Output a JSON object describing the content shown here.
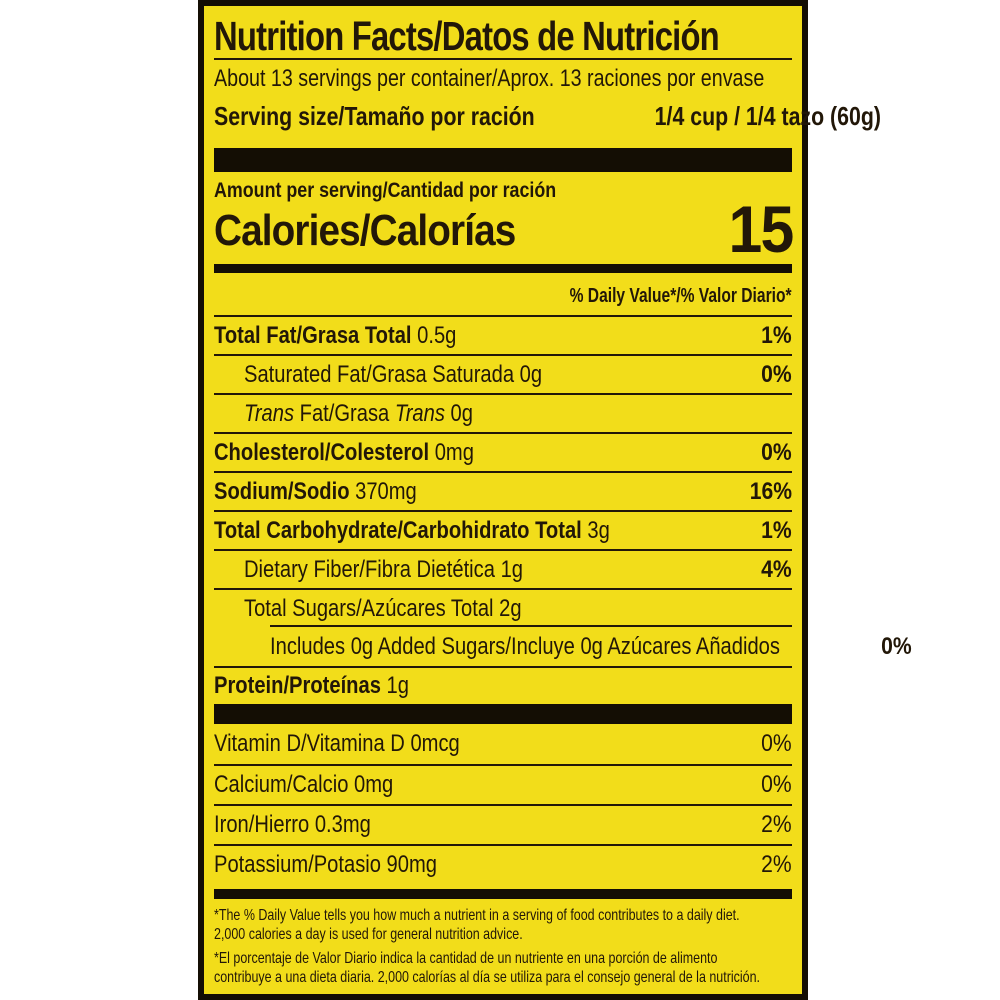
{
  "colors": {
    "label_bg": "#f2dd1a",
    "ink": "#221708",
    "bar_black": "#140e04"
  },
  "label": {
    "title": "Nutrition Facts/Datos de Nutrición",
    "servings_per_container": "About 13 servings per container/Aprox. 13 raciones por envase",
    "serving_size_label": "Serving size/Tamaño por ración",
    "serving_size_value": "1/4 cup / 1/4 tazo (60g)",
    "amount_per_serving": "Amount per serving/Cantidad por ración",
    "calories_label": "Calories/Calorías",
    "calories_value": "15",
    "daily_value_header": "% Daily Value*/% Valor Diario*",
    "nutrients": [
      {
        "name": "Total Fat/Grasa Total",
        "amount": "0.5g",
        "dv": "1%",
        "indent": 0,
        "bold": true
      },
      {
        "name": "Saturated Fat/Grasa Saturada",
        "amount": "0g",
        "dv": "0%",
        "indent": 1,
        "bold": false
      },
      {
        "name": "Trans Fat/Grasa Trans",
        "amount": "0g",
        "dv": "",
        "indent": 1,
        "bold": false,
        "italic_word": "Trans"
      },
      {
        "name": "Cholesterol/Colesterol",
        "amount": "0mg",
        "dv": "0%",
        "indent": 0,
        "bold": true
      },
      {
        "name": "Sodium/Sodio",
        "amount": "370mg",
        "dv": "16%",
        "indent": 0,
        "bold": true
      },
      {
        "name": "Total Carbohydrate/Carbohidrato Total",
        "amount": "3g",
        "dv": "1%",
        "indent": 0,
        "bold": true
      },
      {
        "name": "Dietary Fiber/Fibra Dietética",
        "amount": "1g",
        "dv": "4%",
        "indent": 1,
        "bold": false
      },
      {
        "name": "Total Sugars/Azúcares Total",
        "amount": "2g",
        "dv": "",
        "indent": 1,
        "bold": false
      },
      {
        "name": "Includes 0g Added Sugars/Incluye 0g Azúcares Añadidos",
        "amount": "",
        "dv": "0%",
        "indent": 2,
        "bold": false,
        "indent_rule": true
      },
      {
        "name": "Protein/Proteínas",
        "amount": "1g",
        "dv": "",
        "indent": 0,
        "bold": true,
        "last": true
      }
    ],
    "vitamins": [
      {
        "name": "Vitamin D/Vitamina D",
        "amount": "0mcg",
        "dv": "0%"
      },
      {
        "name": "Calcium/Calcio",
        "amount": "0mg",
        "dv": "0%"
      },
      {
        "name": "Iron/Hierro",
        "amount": "0.3mg",
        "dv": "2%"
      },
      {
        "name": "Potassium/Potasio",
        "amount": "90mg",
        "dv": "2%"
      }
    ],
    "footnotes": {
      "en_line1": "*The % Daily Value tells you how much a nutrient in a serving of food contributes to a daily diet.",
      "en_line2": "2,000 calories a day is used for general nutrition advice.",
      "es_line1": "*El porcentaje de Valor Diario indica la cantidad de un nutriente en una porción de alimento",
      "es_line2": "contribuye a una dieta diaria. 2,000 calorías al día se utiliza para el consejo general de la nutrición."
    }
  }
}
